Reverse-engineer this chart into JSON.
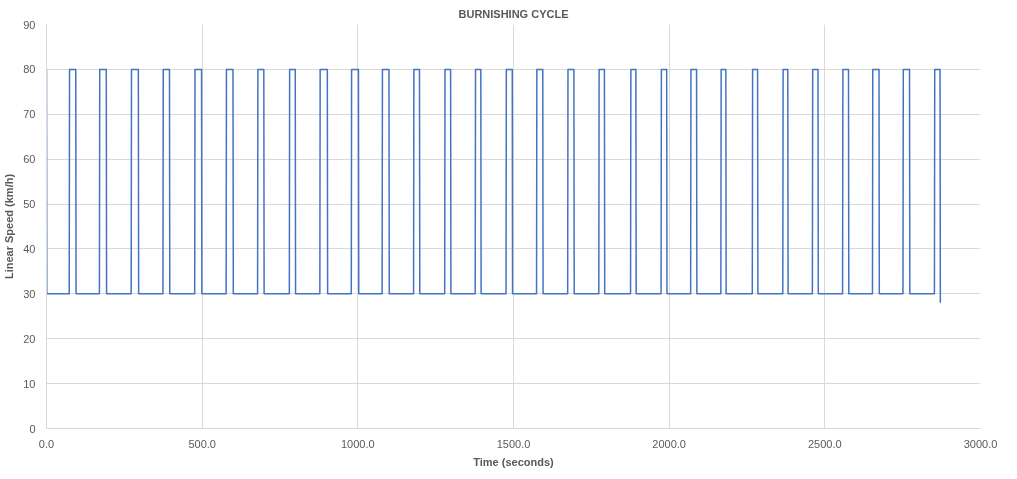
{
  "chart_data": {
    "type": "line",
    "title": "BURNISHING CYCLE",
    "xlabel": "Time (seconds)",
    "ylabel": "Linear Speed (km/h)",
    "xlim": [
      0,
      3000
    ],
    "ylim": [
      0,
      90
    ],
    "xticks": [
      {
        "value": 0,
        "label": "0.0"
      },
      {
        "value": 500,
        "label": "500.0"
      },
      {
        "value": 1000,
        "label": "1000.0"
      },
      {
        "value": 1500,
        "label": "1500.0"
      },
      {
        "value": 2000,
        "label": "2000.0"
      },
      {
        "value": 2500,
        "label": "2500.0"
      },
      {
        "value": 3000,
        "label": "3000.0"
      }
    ],
    "yticks": [
      0,
      10,
      20,
      30,
      40,
      50,
      60,
      70,
      80,
      90
    ],
    "grid": true,
    "marker": "none",
    "line_style": "solid",
    "series": [
      {
        "color": "#4472c4",
        "x": [
          0,
          1,
          73,
          74,
          94,
          95,
          170,
          171,
          192,
          193,
          272,
          273,
          295,
          296,
          374,
          375,
          395,
          396,
          476,
          477,
          498,
          499,
          577,
          578,
          599,
          600,
          678,
          679,
          698,
          699,
          780,
          781,
          799,
          800,
          878,
          879,
          902,
          903,
          979,
          980,
          1002,
          1003,
          1078,
          1079,
          1100,
          1101,
          1179,
          1180,
          1198,
          1199,
          1279,
          1280,
          1298,
          1299,
          1377,
          1378,
          1395,
          1396,
          1476,
          1477,
          1496,
          1497,
          1574,
          1575,
          1594,
          1595,
          1674,
          1675,
          1694,
          1695,
          1774,
          1775,
          1792,
          1793,
          1876,
          1877,
          1893,
          1894,
          1974,
          1975,
          1992,
          1993,
          2069,
          2070,
          2088,
          2089,
          2166,
          2167,
          2182,
          2183,
          2267,
          2268,
          2284,
          2285,
          2365,
          2366,
          2381,
          2382,
          2460,
          2461,
          2478,
          2479,
          2557,
          2558,
          2576,
          2577,
          2653,
          2654,
          2674,
          2675,
          2751,
          2752,
          2772,
          2773,
          2852,
          2853,
          2870,
          2871
        ],
        "values": [
          80,
          30,
          30,
          80,
          80,
          30,
          30,
          80,
          80,
          30,
          30,
          80,
          80,
          30,
          30,
          80,
          80,
          30,
          30,
          80,
          80,
          30,
          30,
          80,
          80,
          30,
          30,
          80,
          80,
          30,
          30,
          80,
          80,
          30,
          30,
          80,
          80,
          30,
          30,
          80,
          80,
          30,
          30,
          80,
          80,
          30,
          30,
          80,
          80,
          30,
          30,
          80,
          80,
          30,
          30,
          80,
          80,
          30,
          30,
          80,
          80,
          30,
          30,
          80,
          80,
          30,
          30,
          80,
          80,
          30,
          30,
          80,
          80,
          30,
          30,
          80,
          80,
          30,
          30,
          80,
          80,
          30,
          30,
          80,
          80,
          30,
          30,
          80,
          80,
          30,
          30,
          80,
          80,
          30,
          30,
          80,
          80,
          30,
          30,
          80,
          80,
          30,
          30,
          80,
          80,
          30,
          30,
          80,
          80,
          30,
          30,
          80,
          80,
          30,
          30,
          80,
          80,
          28
        ]
      }
    ]
  }
}
